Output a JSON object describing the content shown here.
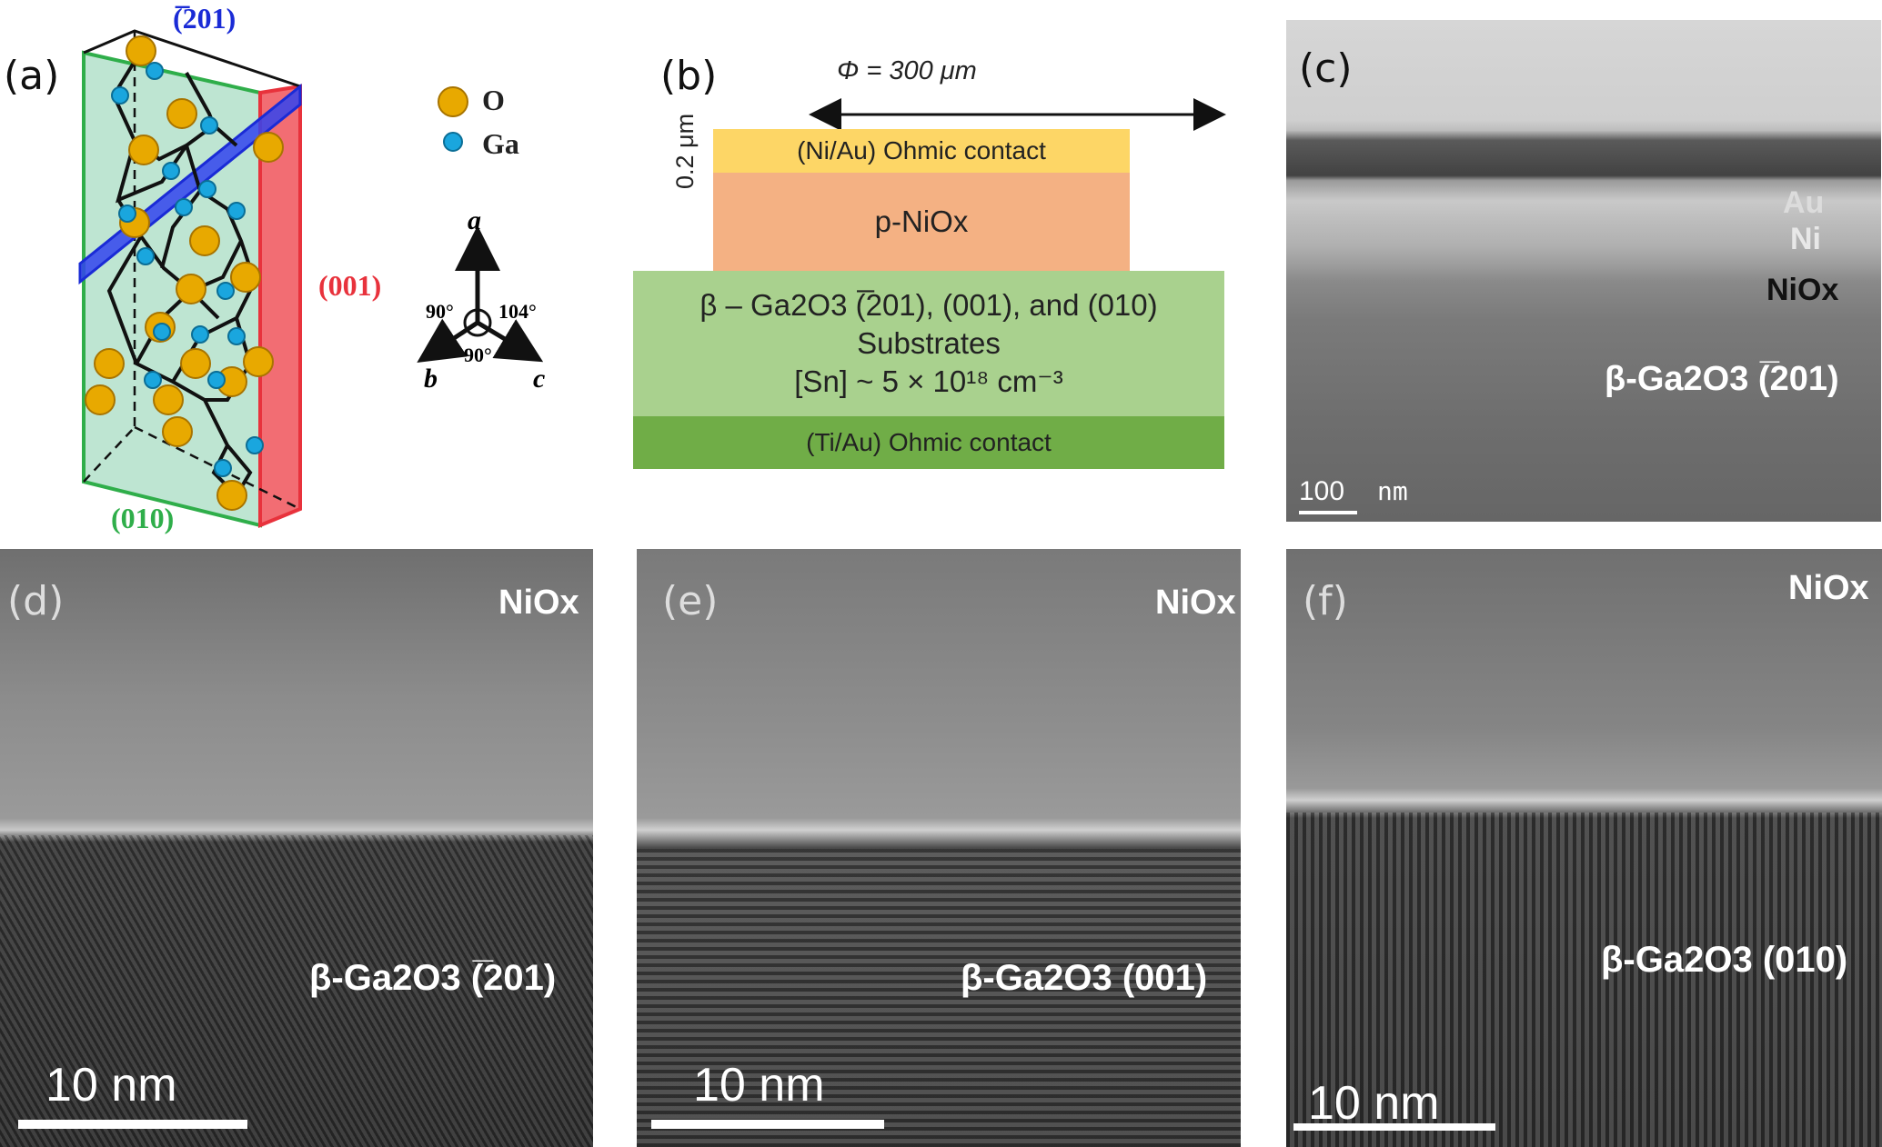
{
  "panels": {
    "a": {
      "label": "(a)",
      "legend": {
        "o": "O",
        "ga": "Ga"
      },
      "planes": {
        "p201": "(̅201)",
        "p001": "(001)",
        "p010": "(010)"
      },
      "axes": {
        "a": "a",
        "b": "b",
        "c": "c"
      },
      "angles": {
        "left": "90°",
        "right": "104°",
        "bottom": "90°"
      },
      "colors": {
        "oxygen": "#e8a900",
        "gallium": "#1aa6de",
        "plane_201": "#1a2bd6",
        "plane_001": "#e8323c",
        "plane_010": "#2fae4a"
      }
    },
    "b": {
      "label": "(b)",
      "diameter": "Φ = 300 μm",
      "thickness": "0.2 μm",
      "top_contact": "(Ni/Au) Ohmic contact",
      "nio_layer": "p-NiOx",
      "substrate_line1": "β – Ga2O3 (̅201), (001), and (010)",
      "substrate_line2": "Substrates",
      "substrate_line3": "[Sn] ~ 5 × 10¹⁸ cm⁻³",
      "bottom_contact": "(Ti/Au) Ohmic contact",
      "colors": {
        "top": "#fdd666",
        "nio": "#f4b183",
        "substrate": "#a9d18e",
        "bottom": "#70ad47"
      }
    },
    "c": {
      "label": "(c)",
      "layer_au": "Au",
      "layer_ni": "Ni",
      "layer_nio": "NiOx",
      "substrate": "β-Ga2O3 (̅201)",
      "scale_value": "100",
      "scale_unit": "nm"
    },
    "d": {
      "label": "(d)",
      "top": "NiOx",
      "bottom": "β-Ga2O3 (̅201)",
      "scale": "10 nm"
    },
    "e": {
      "label": "(e)",
      "top": "NiOx",
      "bottom": "β-Ga2O3 (001)",
      "scale": "10 nm"
    },
    "f": {
      "label": "(f)",
      "top": "NiOx",
      "bottom": "β-Ga2O3 (010)",
      "scale": "10 nm"
    }
  }
}
